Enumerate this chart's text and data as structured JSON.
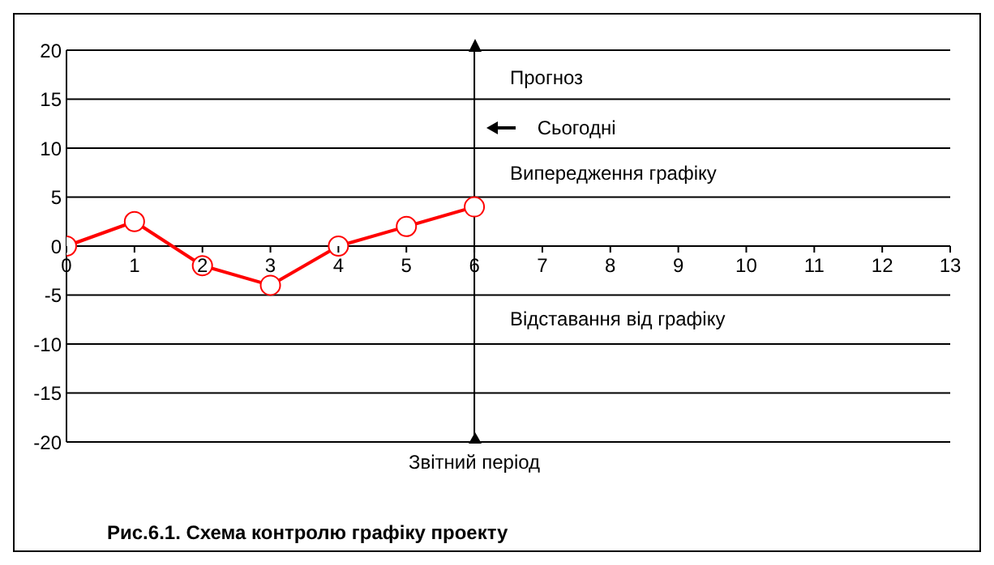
{
  "chart_data": {
    "type": "line",
    "title": "Рис.6.1. Схема контролю графіку проекту",
    "x": [
      0,
      1,
      2,
      3,
      4,
      5,
      6
    ],
    "series": [
      {
        "color": "#ff0000",
        "values": [
          0,
          2.5,
          -2,
          -4,
          0,
          2,
          4
        ]
      }
    ],
    "xlim": [
      0,
      13
    ],
    "xticks": [
      0,
      1,
      2,
      3,
      4,
      5,
      6,
      7,
      8,
      9,
      10,
      11,
      12,
      13
    ],
    "ylim": [
      -20,
      20
    ],
    "yticks": [
      -20,
      -15,
      -10,
      -5,
      0,
      5,
      10,
      15,
      20
    ],
    "grid": "y",
    "marker": "circle",
    "line_style": "solid",
    "ref_lines": [
      {
        "axis": "x",
        "value": 6,
        "label": "Звітний період",
        "color": "#000000"
      }
    ],
    "annotations": [
      "Прогноз",
      "Сьогодні",
      "Випередження графіку",
      "Відставання від графіку"
    ]
  }
}
